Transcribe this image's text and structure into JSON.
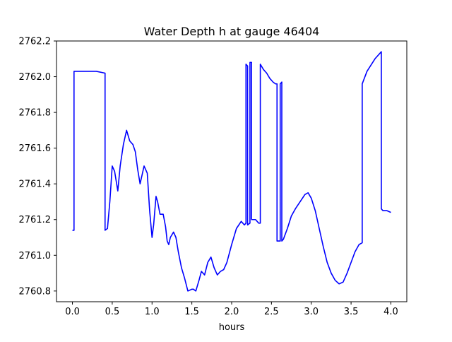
{
  "chart_data": {
    "type": "line",
    "title": "Water Depth h at gauge 46404",
    "xlabel": "hours",
    "ylabel": "",
    "xlim": [
      -0.2,
      4.2
    ],
    "ylim": [
      2760.74,
      2762.2
    ],
    "grid": false,
    "line_color": "#0000ff",
    "xticks": [
      0.0,
      0.5,
      1.0,
      1.5,
      2.0,
      2.5,
      3.0,
      3.5,
      4.0
    ],
    "xtick_labels": [
      "0.0",
      "0.5",
      "1.0",
      "1.5",
      "2.0",
      "2.5",
      "3.0",
      "3.5",
      "4.0"
    ],
    "yticks": [
      2760.8,
      2761.0,
      2761.2,
      2761.4,
      2761.6,
      2761.8,
      2762.0,
      2762.2
    ],
    "ytick_labels": [
      "2760.8",
      "2761.0",
      "2761.2",
      "2761.4",
      "2761.6",
      "2761.8",
      "2762.0",
      "2762.2"
    ],
    "series": [
      {
        "x": [
          0.0,
          0.02,
          0.02,
          0.3,
          0.41,
          0.41,
          0.44,
          0.47,
          0.5,
          0.53,
          0.57,
          0.6,
          0.64,
          0.68,
          0.72,
          0.76,
          0.79,
          0.82,
          0.85,
          0.9,
          0.94,
          0.97,
          1.0,
          1.02,
          1.05,
          1.07,
          1.1,
          1.14,
          1.17,
          1.19,
          1.21,
          1.23,
          1.27,
          1.3,
          1.33,
          1.37,
          1.41,
          1.45,
          1.5,
          1.52,
          1.55,
          1.59,
          1.62,
          1.66,
          1.7,
          1.74,
          1.78,
          1.82,
          1.86,
          1.9,
          1.94,
          2.0,
          2.06,
          2.12,
          2.16,
          2.18,
          2.18,
          2.2,
          2.2,
          2.23,
          2.23,
          2.25,
          2.25,
          2.3,
          2.34,
          2.36,
          2.36,
          2.4,
          2.44,
          2.48,
          2.52,
          2.55,
          2.57,
          2.57,
          2.6,
          2.61,
          2.61,
          2.63,
          2.63,
          2.65,
          2.7,
          2.75,
          2.8,
          2.86,
          2.92,
          2.96,
          3.0,
          3.05,
          3.1,
          3.15,
          3.2,
          3.25,
          3.3,
          3.35,
          3.4,
          3.45,
          3.5,
          3.55,
          3.6,
          3.64,
          3.64,
          3.7,
          3.8,
          3.88,
          3.88,
          3.9,
          3.95,
          4.0
        ],
        "y": [
          2761.14,
          2761.14,
          2762.03,
          2762.03,
          2762.02,
          2761.14,
          2761.15,
          2761.3,
          2761.5,
          2761.47,
          2761.36,
          2761.5,
          2761.62,
          2761.7,
          2761.64,
          2761.62,
          2761.58,
          2761.48,
          2761.4,
          2761.5,
          2761.46,
          2761.25,
          2761.1,
          2761.17,
          2761.33,
          2761.3,
          2761.23,
          2761.23,
          2761.16,
          2761.08,
          2761.06,
          2761.1,
          2761.13,
          2761.1,
          2761.02,
          2760.93,
          2760.87,
          2760.8,
          2760.81,
          2760.81,
          2760.8,
          2760.86,
          2760.91,
          2760.89,
          2760.96,
          2760.99,
          2760.93,
          2760.89,
          2760.91,
          2760.92,
          2760.96,
          2761.06,
          2761.15,
          2761.19,
          2761.17,
          2761.18,
          2762.07,
          2762.06,
          2761.17,
          2761.18,
          2762.08,
          2762.08,
          2761.2,
          2761.2,
          2761.18,
          2761.18,
          2762.07,
          2762.04,
          2762.02,
          2761.99,
          2761.97,
          2761.96,
          2761.96,
          2761.08,
          2761.08,
          2761.08,
          2761.96,
          2761.97,
          2761.08,
          2761.09,
          2761.15,
          2761.22,
          2761.26,
          2761.3,
          2761.34,
          2761.35,
          2761.32,
          2761.25,
          2761.15,
          2761.05,
          2760.96,
          2760.9,
          2760.86,
          2760.84,
          2760.85,
          2760.9,
          2760.96,
          2761.02,
          2761.06,
          2761.07,
          2761.96,
          2762.03,
          2762.1,
          2762.14,
          2761.26,
          2761.25,
          2761.25,
          2761.24
        ]
      }
    ]
  }
}
